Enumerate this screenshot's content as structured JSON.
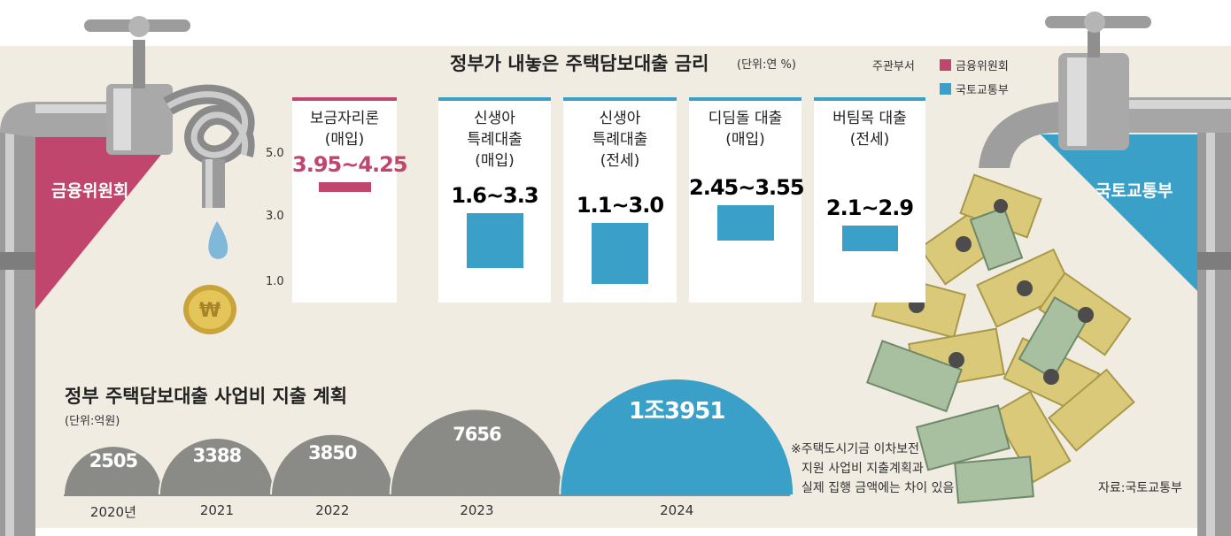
{
  "header": {
    "title": "정부가 내놓은 주택담보대출 금리",
    "unit": "(단위:연 %)",
    "legend_title": "주관부서",
    "legend": [
      {
        "label": "금융위원회",
        "color": "#c0466d"
      },
      {
        "label": "국토교통부",
        "color": "#3aa0c8"
      }
    ]
  },
  "side_labels": {
    "left": "금융위원회",
    "right": "국토교통부"
  },
  "chart_data": [
    {
      "type": "bar",
      "title": "정부가 내놓은 주택담보대출 금리",
      "unit": "(단위:연 %)",
      "y_ticks": [
        "5.0",
        "3.0",
        "1.0"
      ],
      "y_tick_values": [
        5.0,
        3.0,
        1.0
      ],
      "categories": [
        {
          "name": "보금자리론",
          "sub": "(매입)",
          "low": 3.95,
          "high": 4.25,
          "label": "3.95~4.25",
          "dept": "금융위원회",
          "color": "#c0466d"
        },
        {
          "name": "신생아 특례대출",
          "name_lines": [
            "신생아",
            "특례대출"
          ],
          "sub": "(매입)",
          "low": 1.6,
          "high": 3.3,
          "label": "1.6~3.3",
          "dept": "국토교통부",
          "color": "#3aa0c8"
        },
        {
          "name": "신생아 특례대출",
          "name_lines": [
            "신생아",
            "특례대출"
          ],
          "sub": "(전세)",
          "low": 1.1,
          "high": 3.0,
          "label": "1.1~3.0",
          "dept": "국토교통부",
          "color": "#3aa0c8"
        },
        {
          "name": "디딤돌 대출",
          "sub": "(매입)",
          "low": 2.45,
          "high": 3.55,
          "label": "2.45~3.55",
          "dept": "국토교통부",
          "color": "#3aa0c8"
        },
        {
          "name": "버팀목 대출",
          "sub": "(전세)",
          "low": 2.1,
          "high": 2.9,
          "label": "2.1~2.9",
          "dept": "국토교통부",
          "color": "#3aa0c8"
        }
      ]
    },
    {
      "type": "area",
      "title": "정부 주택담보대출 사업비 지출 계획",
      "unit": "(단위:억원)",
      "categories": [
        "2020년",
        "2021",
        "2022",
        "2023",
        "2024"
      ],
      "values": [
        2505,
        3388,
        3850,
        7656,
        13951
      ],
      "value_labels": [
        "2505",
        "3388",
        "3850",
        "7656",
        "1조3951"
      ],
      "colors": [
        "#8a8a86",
        "#8a8a86",
        "#8a8a86",
        "#8a8a86",
        "#3aa0c8"
      ]
    }
  ],
  "footnote": [
    "※주택도시기금 이차보전",
    "지원 사업비 지출계획과",
    "실제 집행 금액에는 차이 있음"
  ],
  "source": "자료:국토교통부",
  "illustration": {
    "left": [
      "faucet-knotted-icon",
      "water-drop-icon",
      "won-coin-icon"
    ],
    "right": [
      "faucet-icon",
      "banknotes-icon"
    ]
  }
}
